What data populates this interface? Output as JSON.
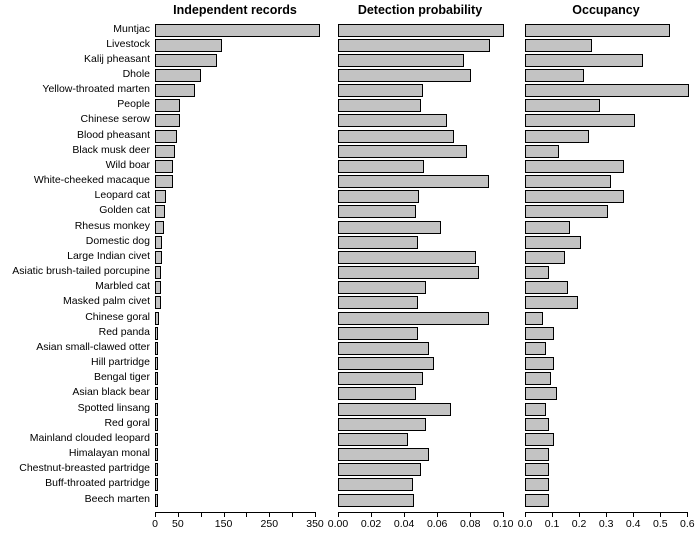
{
  "colors": {
    "background": "#ffffff",
    "bar_fill": "#c3c3c3",
    "bar_border": "#000000",
    "text": "#000000"
  },
  "chart_data": {
    "type": "bar",
    "orientation": "horizontal",
    "grid": false,
    "legend": "none",
    "categories": [
      "Muntjac",
      "Livestock",
      "Kalij pheasant",
      "Dhole",
      "Yellow-throated marten",
      "People",
      "Chinese serow",
      "Blood pheasant",
      "Black musk deer",
      "Wild boar",
      "White-cheeked macaque",
      "Leopard cat",
      "Golden cat",
      "Rhesus monkey",
      "Domestic dog",
      "Large Indian civet",
      "Asiatic brush-tailed porcupine",
      "Marbled cat",
      "Masked palm civet",
      "Chinese goral",
      "Red panda",
      "Asian small-clawed otter",
      "Hill partridge",
      "Bengal tiger",
      "Asian black bear",
      "Spotted linsang",
      "Red goral",
      "Mainland clouded leopard",
      "Himalayan monal",
      "Chestnut-breasted partridge",
      "Buff-throated partridge",
      "Beech marten"
    ],
    "panels": [
      {
        "title": "Independent records",
        "xlim": [
          0,
          350
        ],
        "ticks": [
          0,
          50,
          100,
          150,
          200,
          250,
          300,
          350
        ],
        "tick_labels": [
          "0",
          "50",
          "",
          "150",
          "",
          "250",
          "",
          "350"
        ],
        "values": [
          356,
          142,
          131,
          97,
          84,
          51,
          50,
          44,
          39,
          36,
          36,
          20,
          17,
          15,
          12,
          10,
          8,
          8,
          8,
          5,
          3,
          3,
          3,
          3,
          3,
          2,
          2,
          2,
          2,
          2,
          2,
          2
        ]
      },
      {
        "title": "Detection probability",
        "xlim": [
          0,
          0.1
        ],
        "ticks": [
          0,
          0.02,
          0.04,
          0.06,
          0.08,
          0.1
        ],
        "tick_labels": [
          "0.00",
          "0.02",
          "0.04",
          "0.06",
          "0.08",
          "0.10"
        ],
        "values": [
          0.099,
          0.091,
          0.075,
          0.079,
          0.05,
          0.049,
          0.065,
          0.069,
          0.077,
          0.051,
          0.09,
          0.048,
          0.046,
          0.061,
          0.047,
          0.082,
          0.084,
          0.052,
          0.047,
          0.09,
          0.047,
          0.054,
          0.057,
          0.05,
          0.046,
          0.067,
          0.052,
          0.041,
          0.054,
          0.049,
          0.044,
          0.045
        ]
      },
      {
        "title": "Occupancy",
        "xlim": [
          0,
          0.6
        ],
        "ticks": [
          0,
          0.1,
          0.2,
          0.3,
          0.4,
          0.5,
          0.6
        ],
        "tick_labels": [
          "0.0",
          "0.1",
          "0.2",
          "0.3",
          "0.4",
          "0.5",
          "0.6"
        ],
        "values": [
          0.53,
          0.24,
          0.43,
          0.21,
          0.6,
          0.27,
          0.4,
          0.23,
          0.12,
          0.36,
          0.31,
          0.36,
          0.3,
          0.16,
          0.2,
          0.14,
          0.08,
          0.15,
          0.19,
          0.06,
          0.1,
          0.07,
          0.1,
          0.09,
          0.11,
          0.07,
          0.08,
          0.1,
          0.08,
          0.08,
          0.08,
          0.08
        ]
      }
    ]
  }
}
